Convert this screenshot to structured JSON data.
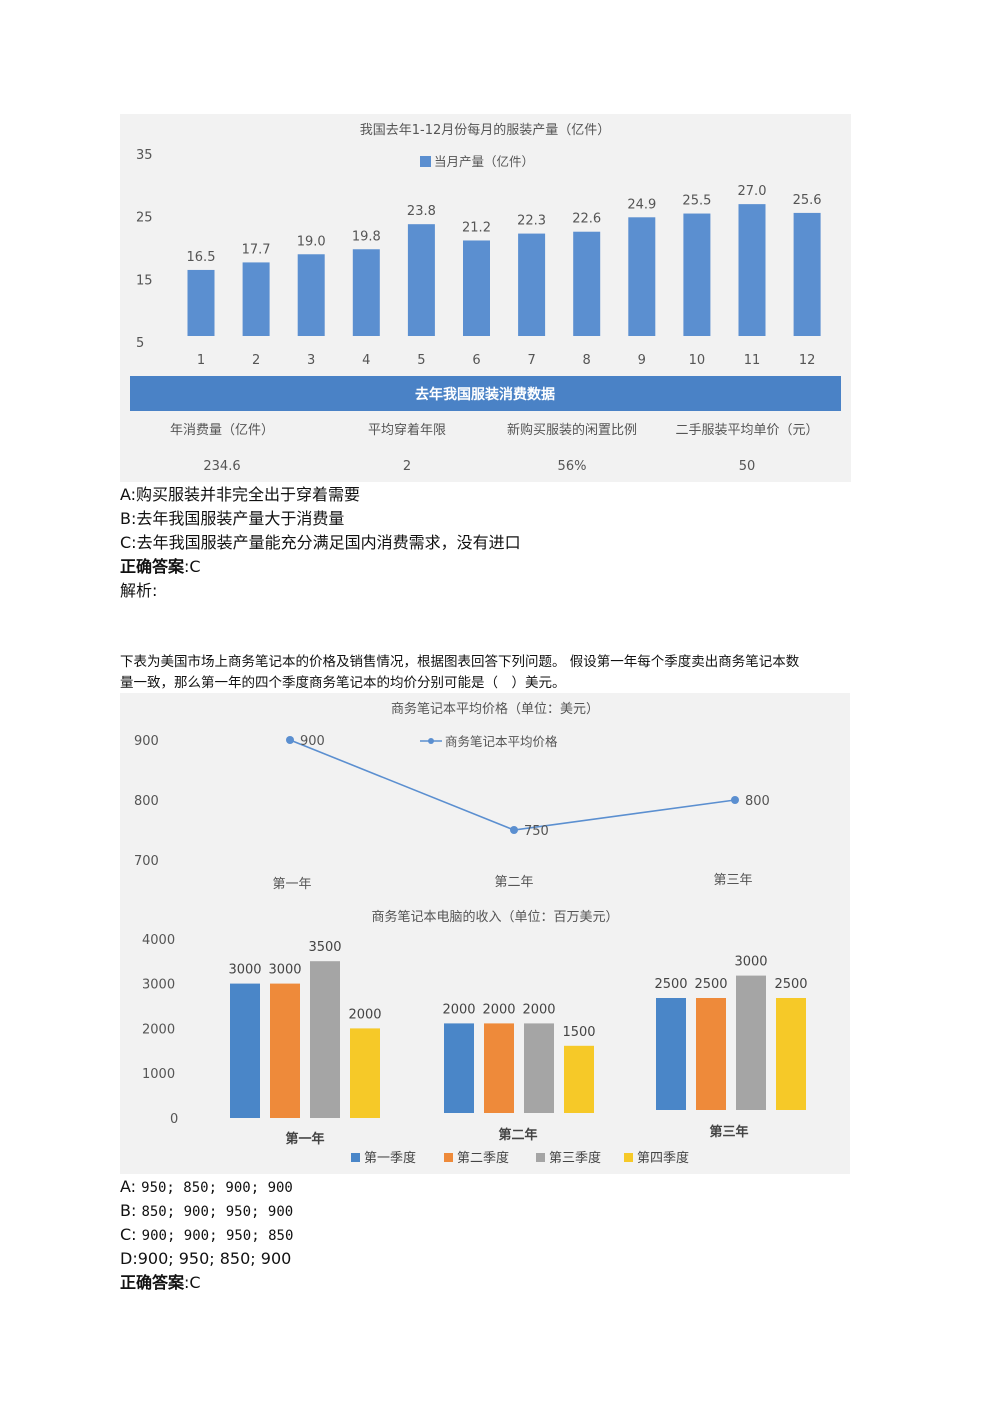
{
  "question1": {
    "chart_data": {
      "type": "bar",
      "title": "我国去年1-12月份每月的服装产量（亿件）",
      "legend": "当月产量（亿件）",
      "categories": [
        "1",
        "2",
        "3",
        "4",
        "5",
        "6",
        "7",
        "8",
        "9",
        "10",
        "11",
        "12"
      ],
      "values": [
        16.5,
        17.7,
        19.0,
        19.8,
        23.8,
        21.2,
        22.3,
        22.6,
        24.9,
        25.5,
        27.0,
        25.6
      ],
      "value_labels": [
        "16.5",
        "17.7",
        "19.0",
        "19.8",
        "23.8",
        "21.2",
        "22.3",
        "22.6",
        "24.9",
        "25.5",
        "27.0",
        "25.6"
      ],
      "yticks": [
        "35",
        "25",
        "15",
        "5"
      ],
      "ylim": [
        5,
        35
      ],
      "bar_color": "#5b8fd0"
    },
    "table": {
      "title": "去年我国服装消费数据",
      "headers": [
        "年消费量（亿件）",
        "平均穿着年限",
        "新购买服装的闲置比例",
        "二手服装平均单价（元）"
      ],
      "values": [
        "234.6",
        "2",
        "56%",
        "50"
      ],
      "banner_color": "#4a82c6"
    },
    "options": [
      "A:购买服装并非完全出于穿着需要",
      "B:去年我国服装产量大于消费量",
      "C:去年我国服装产量能充分满足国内消费需求，没有进口"
    ],
    "answer_label": "正确答案",
    "answer_value": ":C",
    "analysis": "解析:"
  },
  "question2": {
    "text_line1": "下表为美国市场上商务笔记本的价格及销售情况，根据图表回答下列问题。 假设第一年每个季度卖出商务笔记本数",
    "text_line2": "量一致，那么第一年的四个季度商务笔记本的均价分别可能是（　）美元。",
    "line_chart": {
      "type": "line",
      "title": "商务笔记本平均价格（单位：美元）",
      "legend": "商务笔记本平均价格",
      "categories": [
        "第一年",
        "第二年",
        "第三年"
      ],
      "values": [
        900,
        750,
        800
      ],
      "value_labels": [
        "900",
        "750",
        "800"
      ],
      "yticks": [
        "900",
        "800",
        "700"
      ],
      "ylim": [
        700,
        900
      ],
      "color": "#5b8fd0"
    },
    "bar_chart": {
      "type": "bar",
      "title": "商务笔记本电脑的收入（单位：百万美元）",
      "categories": [
        "第一年",
        "第二年",
        "第三年"
      ],
      "series": [
        {
          "name": "第一季度",
          "values": [
            3000,
            2000,
            2500
          ],
          "color": "#4a86c8"
        },
        {
          "name": "第二季度",
          "values": [
            3000,
            2000,
            2500
          ],
          "color": "#ee8a3a"
        },
        {
          "name": "第三季度",
          "values": [
            3500,
            2000,
            3000
          ],
          "color": "#a5a5a5"
        },
        {
          "name": "第四季度",
          "values": [
            2000,
            1500,
            2500
          ],
          "color": "#f6c928"
        }
      ],
      "yticks": [
        "4000",
        "3000",
        "2000",
        "1000",
        "0"
      ],
      "ylim": [
        0,
        4000
      ]
    },
    "options": [
      {
        "prefix": "A: ",
        "text": "950; 850; 900; 900"
      },
      {
        "prefix": "B: ",
        "text": "850; 900; 950; 900"
      },
      {
        "prefix": "C: ",
        "text": "900; 900; 950; 850"
      }
    ],
    "option_d": "D:900; 950; 850; 900",
    "answer_label": "正确答案",
    "answer_value": ":C"
  }
}
